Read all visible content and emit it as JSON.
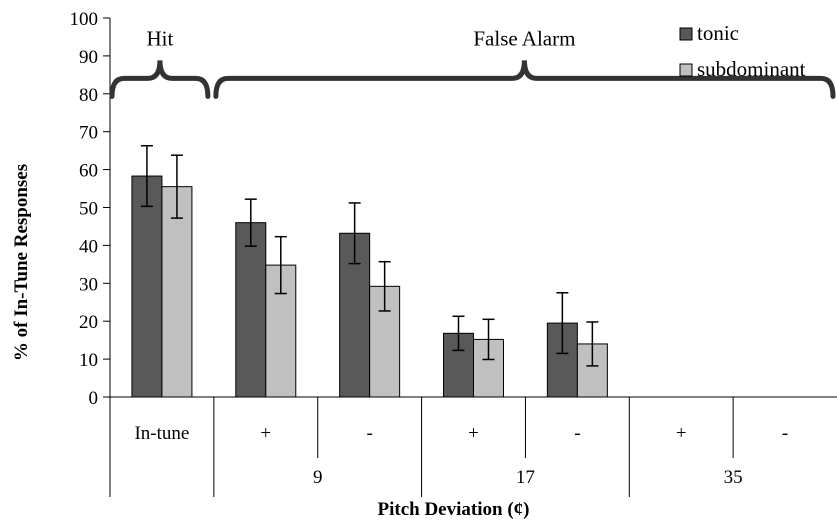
{
  "chart_data": {
    "type": "bar",
    "title": "",
    "xlabel": "Pitch Deviation (¢)",
    "ylabel": "% of In-Tune Responses",
    "ylim": [
      0,
      100
    ],
    "yticks": [
      0,
      10,
      20,
      30,
      40,
      50,
      60,
      70,
      80,
      90,
      100
    ],
    "grid": false,
    "legend": "top-right",
    "categories": [
      "In-tune",
      "+",
      "-",
      "+",
      "-",
      "+",
      "-"
    ],
    "group_labels": [
      {
        "label": "9",
        "start": 1,
        "end": 2
      },
      {
        "label": "17",
        "start": 3,
        "end": 4
      },
      {
        "label": "35",
        "start": 5,
        "end": 6
      }
    ],
    "series": [
      {
        "name": "tonic",
        "color": "#595959",
        "values": [
          58.3,
          46.0,
          43.2,
          16.8,
          19.5,
          0,
          0
        ],
        "errors": [
          8.0,
          6.2,
          8.0,
          4.5,
          8.0,
          0,
          0
        ]
      },
      {
        "name": "subdominant",
        "color": "#c0c0c0",
        "values": [
          55.5,
          34.8,
          29.2,
          15.2,
          14.0,
          0,
          0
        ],
        "errors": [
          8.3,
          7.5,
          6.5,
          5.3,
          5.8,
          0,
          0
        ]
      }
    ],
    "annotations": [
      {
        "text": "Hit",
        "from_cat": 0,
        "to_cat": 0,
        "y": 83
      },
      {
        "text": "False Alarm",
        "from_cat": 1,
        "to_cat": 6,
        "y": 83
      }
    ]
  }
}
